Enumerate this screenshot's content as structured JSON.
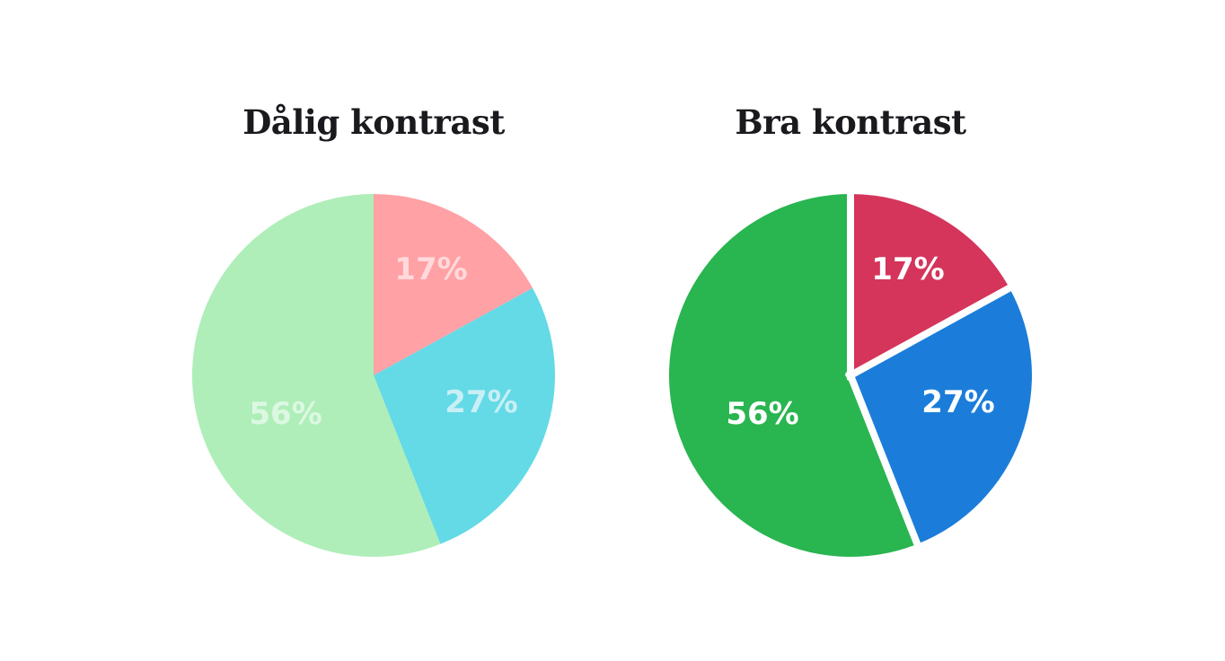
{
  "background": "#FFFFFF",
  "title_color": "#1A1A1E",
  "chart_data": [
    {
      "type": "pie",
      "title": "Dålig kontrast",
      "start_angle_deg": 0,
      "direction": "clockwise",
      "radius_px": 202,
      "slice_gap": false,
      "separator_color": null,
      "slices": [
        {
          "value": 17,
          "label": "17%",
          "color": "#FFA1A5",
          "label_color": "#FFD9DB",
          "label_xy": [
            64,
            -118
          ]
        },
        {
          "value": 27,
          "label": "27%",
          "color": "#63DAE6",
          "label_color": "#C9EFF5",
          "label_xy": [
            120,
            30
          ]
        },
        {
          "value": 56,
          "label": "56%",
          "color": "#AFEEB9",
          "label_color": "#DCF8E2",
          "label_xy": [
            -98,
            43
          ]
        }
      ]
    },
    {
      "type": "pie",
      "title": "Bra kontrast",
      "start_angle_deg": 0,
      "direction": "clockwise",
      "radius_px": 202,
      "slice_gap": true,
      "separator_color": "#FFFFFF",
      "slices": [
        {
          "value": 17,
          "label": "17%",
          "color": "#D5345B",
          "label_color": "#FFFFFF",
          "label_xy": [
            64,
            -118
          ]
        },
        {
          "value": 27,
          "label": "27%",
          "color": "#1B7DD9",
          "label_color": "#FFFFFF",
          "label_xy": [
            120,
            30
          ]
        },
        {
          "value": 56,
          "label": "56%",
          "color": "#29B550",
          "label_color": "#FFFFFF",
          "label_xy": [
            -98,
            43
          ]
        }
      ]
    }
  ]
}
